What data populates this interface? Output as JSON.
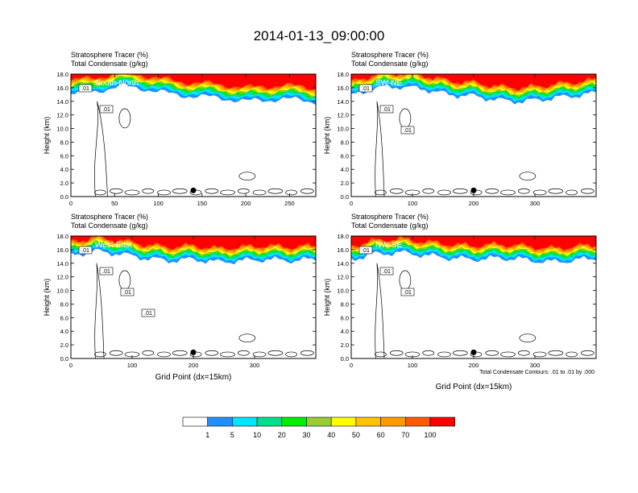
{
  "figure": {
    "title": "2014-01-13_09:00:00",
    "footnote": "Total Condensate Contours: .01 to .01 by .000"
  },
  "colorbar": {
    "labels": [
      "1",
      "5",
      "10",
      "20",
      "30",
      "40",
      "50",
      "60",
      "70",
      "100"
    ],
    "colors": [
      "#ffffff",
      "#1e90ff",
      "#00e5ff",
      "#00e08a",
      "#00ee00",
      "#9acd32",
      "#ffff00",
      "#ffc400",
      "#ff9a00",
      "#ff5a00",
      "#ff0000"
    ]
  },
  "chart_data": [
    {
      "type": "heatmap",
      "panel_label": "South-North",
      "title_line1": "Stratosphere Tracer   (%)",
      "title_line2": "Total Condensate   (g/kg)",
      "ylabel": "Height (km)",
      "xlabel": "",
      "xlim": [
        0,
        280
      ],
      "ylim": [
        0,
        18
      ],
      "xticks": [
        "0",
        "50",
        "100",
        "150",
        "200",
        "250"
      ],
      "yticks": [
        "0.0",
        "2.0",
        "4.0",
        "6.0",
        "8.0",
        "10.0",
        "12.0",
        "14.0",
        "16.0",
        "18.0"
      ],
      "marker_x": 140,
      "contour_labels": [
        ".01",
        ".01"
      ],
      "tropopause_km": [
        [
          0,
          15.2
        ],
        [
          20,
          15.6
        ],
        [
          40,
          16.0
        ],
        [
          60,
          16.4
        ],
        [
          80,
          16.2
        ],
        [
          100,
          15.6
        ],
        [
          120,
          15.2
        ],
        [
          140,
          15.0
        ],
        [
          160,
          14.8
        ],
        [
          180,
          14.6
        ],
        [
          200,
          14.2
        ],
        [
          220,
          14.4
        ],
        [
          240,
          14.6
        ],
        [
          260,
          14.4
        ],
        [
          280,
          14.2
        ]
      ]
    },
    {
      "type": "heatmap",
      "panel_label": "SW-NE",
      "title_line1": "Stratosphere Tracer   (%)",
      "title_line2": "Total Condensate   (g/kg)",
      "ylabel": "Height (km)",
      "xlabel": "",
      "xlim": [
        0,
        400
      ],
      "ylim": [
        0,
        18
      ],
      "xticks": [
        "0",
        "100",
        "200",
        "300"
      ],
      "yticks": [
        "0.0",
        "2.0",
        "4.0",
        "6.0",
        "8.0",
        "10.0",
        "12.0",
        "14.0",
        "16.0",
        "18.0"
      ],
      "marker_x": 200,
      "contour_labels": [
        ".01",
        ".01",
        ".01"
      ],
      "tropopause_km": [
        [
          0,
          15.0
        ],
        [
          40,
          16.2
        ],
        [
          80,
          16.4
        ],
        [
          120,
          16.0
        ],
        [
          160,
          15.2
        ],
        [
          200,
          15.0
        ],
        [
          240,
          14.4
        ],
        [
          280,
          14.2
        ],
        [
          320,
          14.6
        ],
        [
          360,
          15.0
        ],
        [
          400,
          15.4
        ]
      ]
    },
    {
      "type": "heatmap",
      "panel_label": "West-East",
      "title_line1": "Stratosphere Tracer   (%)",
      "title_line2": "Total Condensate   (g/kg)",
      "ylabel": "Height (km)",
      "xlabel": "Grid Point (dx=15km)",
      "xlim": [
        0,
        400
      ],
      "ylim": [
        0,
        18
      ],
      "xticks": [
        "0",
        "100",
        "200",
        "300"
      ],
      "yticks": [
        "0.0",
        "2.0",
        "4.0",
        "6.0",
        "8.0",
        "10.0",
        "12.0",
        "14.0",
        "16.0",
        "18.0"
      ],
      "marker_x": 200,
      "contour_labels": [
        ".01",
        ".01",
        ".01",
        ".01"
      ],
      "tropopause_km": [
        [
          0,
          15.4
        ],
        [
          40,
          16.0
        ],
        [
          80,
          15.6
        ],
        [
          120,
          15.0
        ],
        [
          160,
          14.6
        ],
        [
          200,
          14.8
        ],
        [
          240,
          14.4
        ],
        [
          280,
          14.6
        ],
        [
          320,
          14.8
        ],
        [
          360,
          14.6
        ],
        [
          400,
          14.8
        ]
      ]
    },
    {
      "type": "heatmap",
      "panel_label": "NW-SE",
      "title_line1": "Stratosphere Tracer   (%)",
      "title_line2": "Total Condensate   (g/kg)",
      "ylabel": "Height (km)",
      "xlabel": "Grid Point (dx=15km)",
      "xlim": [
        0,
        400
      ],
      "ylim": [
        0,
        18
      ],
      "xticks": [
        "0",
        "100",
        "200",
        "300"
      ],
      "yticks": [
        "0.0",
        "2.0",
        "4.0",
        "6.0",
        "8.0",
        "10.0",
        "12.0",
        "14.0",
        "16.0",
        "18.0"
      ],
      "marker_x": 200,
      "contour_labels": [
        ".01",
        ".01",
        ".01"
      ],
      "tropopause_km": [
        [
          0,
          14.8
        ],
        [
          40,
          15.6
        ],
        [
          80,
          15.8
        ],
        [
          120,
          15.4
        ],
        [
          160,
          15.0
        ],
        [
          200,
          14.8
        ],
        [
          240,
          15.0
        ],
        [
          280,
          14.8
        ],
        [
          320,
          14.4
        ],
        [
          360,
          14.6
        ],
        [
          400,
          15.0
        ]
      ]
    }
  ]
}
